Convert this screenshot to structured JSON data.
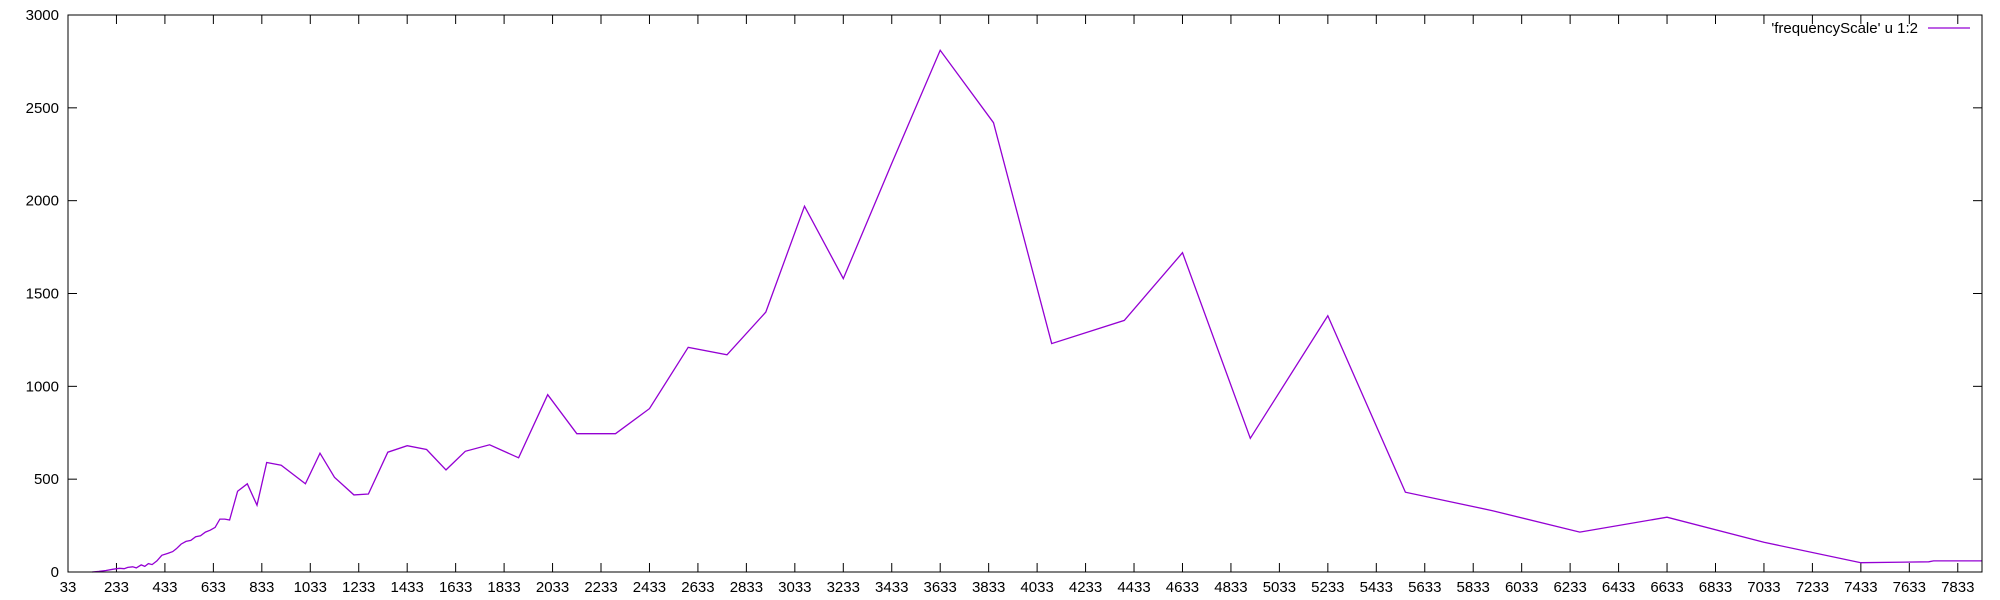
{
  "chart_data": {
    "type": "line",
    "title": "",
    "xlabel": "",
    "ylabel": "",
    "xlim": [
      33,
      7933
    ],
    "ylim": [
      0,
      3000
    ],
    "x_ticks": [
      33,
      233,
      433,
      633,
      833,
      1033,
      1233,
      1433,
      1633,
      1833,
      2033,
      2233,
      2433,
      2633,
      2833,
      3033,
      3233,
      3433,
      3633,
      3833,
      4033,
      4233,
      4433,
      4633,
      4833,
      5033,
      5233,
      5433,
      5633,
      5833,
      6033,
      6233,
      6433,
      6633,
      6833,
      7033,
      7233,
      7433,
      7633,
      7833
    ],
    "y_ticks": [
      0,
      500,
      1000,
      1500,
      2000,
      2500,
      3000
    ],
    "grid": false,
    "legend_position": "top-right",
    "series": [
      {
        "name": "'frequencyScale' u 1:2",
        "color": "#9400d3",
        "points": [
          [
            133,
            0
          ],
          [
            160,
            3
          ],
          [
            190,
            8
          ],
          [
            220,
            15
          ],
          [
            245,
            20
          ],
          [
            265,
            18
          ],
          [
            280,
            25
          ],
          [
            300,
            28
          ],
          [
            315,
            22
          ],
          [
            335,
            38
          ],
          [
            350,
            30
          ],
          [
            365,
            45
          ],
          [
            380,
            40
          ],
          [
            400,
            60
          ],
          [
            420,
            90
          ],
          [
            445,
            100
          ],
          [
            465,
            110
          ],
          [
            480,
            125
          ],
          [
            500,
            150
          ],
          [
            520,
            165
          ],
          [
            540,
            170
          ],
          [
            560,
            190
          ],
          [
            580,
            195
          ],
          [
            600,
            215
          ],
          [
            620,
            225
          ],
          [
            640,
            240
          ],
          [
            660,
            285
          ],
          [
            680,
            285
          ],
          [
            700,
            280
          ],
          [
            733,
            435
          ],
          [
            773,
            475
          ],
          [
            813,
            360
          ],
          [
            853,
            590
          ],
          [
            913,
            575
          ],
          [
            1013,
            475
          ],
          [
            1073,
            640
          ],
          [
            1133,
            510
          ],
          [
            1213,
            415
          ],
          [
            1273,
            420
          ],
          [
            1353,
            645
          ],
          [
            1433,
            680
          ],
          [
            1513,
            660
          ],
          [
            1593,
            550
          ],
          [
            1673,
            650
          ],
          [
            1773,
            685
          ],
          [
            1893,
            615
          ],
          [
            2013,
            955
          ],
          [
            2133,
            745
          ],
          [
            2293,
            745
          ],
          [
            2433,
            880
          ],
          [
            2593,
            1210
          ],
          [
            2753,
            1170
          ],
          [
            2913,
            1400
          ],
          [
            3073,
            1970
          ],
          [
            3233,
            1580
          ],
          [
            3433,
            2200
          ],
          [
            3633,
            2810
          ],
          [
            3853,
            2420
          ],
          [
            4093,
            1230
          ],
          [
            4393,
            1355
          ],
          [
            4633,
            1720
          ],
          [
            4913,
            720
          ],
          [
            5233,
            1380
          ],
          [
            5553,
            430
          ],
          [
            5913,
            330
          ],
          [
            6273,
            215
          ],
          [
            6633,
            295
          ],
          [
            7033,
            160
          ],
          [
            7433,
            50
          ],
          [
            7713,
            55
          ],
          [
            7733,
            60
          ],
          [
            7933,
            60
          ]
        ]
      }
    ]
  }
}
